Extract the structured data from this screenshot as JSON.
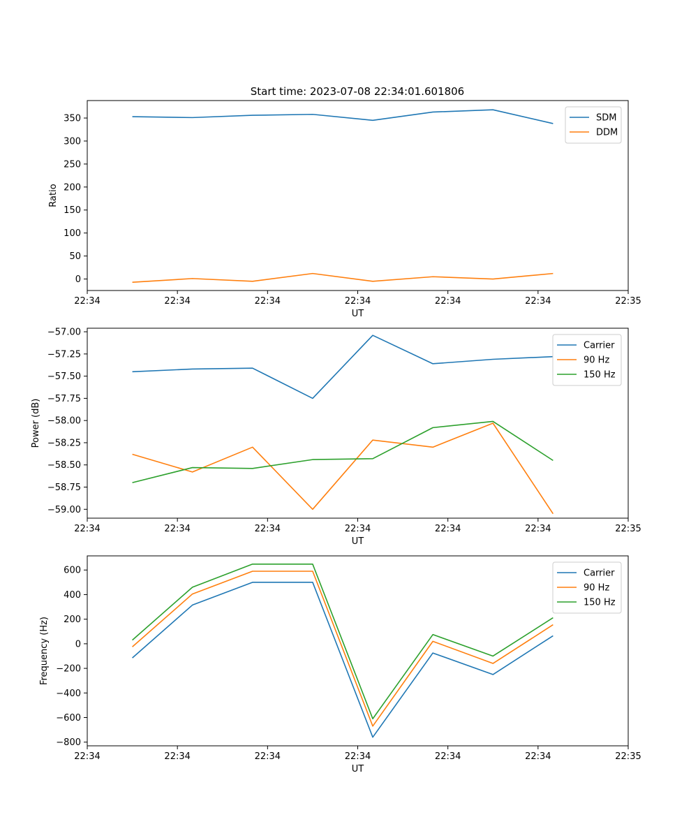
{
  "figure_title": "Start time: 2023-07-08 22:34:01.601806",
  "chart_data": [
    {
      "type": "line",
      "title": "Start time: 2023-07-08 22:34:01.601806",
      "xlabel": "UT",
      "ylabel": "Ratio",
      "x": [
        1,
        2,
        3,
        4,
        5,
        6,
        7,
        8
      ],
      "xlim": [
        0.25,
        9.25
      ],
      "xticks": [
        0.25,
        1.75,
        3.25,
        4.75,
        6.25,
        7.75,
        9.25
      ],
      "xtick_labels": [
        "22:34",
        "22:34",
        "22:34",
        "22:34",
        "22:34",
        "22:34",
        "22:35"
      ],
      "ylim": [
        -25,
        388
      ],
      "yticks": [
        0,
        50,
        100,
        150,
        200,
        250,
        300,
        350
      ],
      "ytick_labels": [
        "0",
        "50",
        "100",
        "150",
        "200",
        "250",
        "300",
        "350"
      ],
      "legend_position": "top-right",
      "series": [
        {
          "name": "SDM",
          "color": "#1f77b4",
          "values": [
            353,
            351,
            356,
            358,
            345,
            363,
            368,
            338
          ]
        },
        {
          "name": "DDM",
          "color": "#ff7f0e",
          "values": [
            -7,
            1,
            -5,
            12,
            -5,
            5,
            0,
            12
          ]
        }
      ]
    },
    {
      "type": "line",
      "title": "",
      "xlabel": "UT",
      "ylabel": "Power (dB)",
      "x": [
        1,
        2,
        3,
        4,
        5,
        6,
        7,
        8
      ],
      "xlim": [
        0.25,
        9.25
      ],
      "xticks": [
        0.25,
        1.75,
        3.25,
        4.75,
        6.25,
        7.75,
        9.25
      ],
      "xtick_labels": [
        "22:34",
        "22:34",
        "22:34",
        "22:34",
        "22:34",
        "22:34",
        "22:35"
      ],
      "ylim": [
        -59.1,
        -56.96
      ],
      "yticks": [
        -59.0,
        -58.75,
        -58.5,
        -58.25,
        -58.0,
        -57.75,
        -57.5,
        -57.25,
        -57.0
      ],
      "ytick_labels": [
        "−59.00",
        "−58.75",
        "−58.50",
        "−58.25",
        "−58.00",
        "−57.75",
        "−57.50",
        "−57.25",
        "−57.00"
      ],
      "legend_position": "top-right",
      "series": [
        {
          "name": "Carrier",
          "color": "#1f77b4",
          "values": [
            -57.45,
            -57.42,
            -57.41,
            -57.75,
            -57.04,
            -57.36,
            -57.31,
            -57.28
          ]
        },
        {
          "name": "90 Hz",
          "color": "#ff7f0e",
          "values": [
            -58.38,
            -58.58,
            -58.3,
            -59.0,
            -58.22,
            -58.3,
            -58.03,
            -59.05
          ]
        },
        {
          "name": "150 Hz",
          "color": "#2ca02c",
          "values": [
            -58.7,
            -58.53,
            -58.54,
            -58.44,
            -58.43,
            -58.08,
            -58.01,
            -58.45
          ]
        }
      ]
    },
    {
      "type": "line",
      "title": "",
      "xlabel": "UT",
      "ylabel": "Frequency (Hz)",
      "x": [
        1,
        2,
        3,
        4,
        5,
        6,
        7,
        8
      ],
      "xlim": [
        0.25,
        9.25
      ],
      "xticks": [
        0.25,
        1.75,
        3.25,
        4.75,
        6.25,
        7.75,
        9.25
      ],
      "xtick_labels": [
        "22:34",
        "22:34",
        "22:34",
        "22:34",
        "22:34",
        "22:34",
        "22:35"
      ],
      "ylim": [
        -830,
        715
      ],
      "yticks": [
        -800,
        -600,
        -400,
        -200,
        0,
        200,
        400,
        600
      ],
      "ytick_labels": [
        "−800",
        "−600",
        "−400",
        "−200",
        "0",
        "200",
        "400",
        "600"
      ],
      "legend_position": "top-right",
      "series": [
        {
          "name": "Carrier",
          "color": "#1f77b4",
          "values": [
            -115,
            315,
            500,
            500,
            -760,
            -75,
            -250,
            65
          ]
        },
        {
          "name": "90 Hz",
          "color": "#ff7f0e",
          "values": [
            -25,
            405,
            590,
            590,
            -670,
            20,
            -160,
            155
          ]
        },
        {
          "name": "150 Hz",
          "color": "#2ca02c",
          "values": [
            30,
            460,
            648,
            648,
            -610,
            75,
            -100,
            212
          ]
        }
      ]
    }
  ]
}
